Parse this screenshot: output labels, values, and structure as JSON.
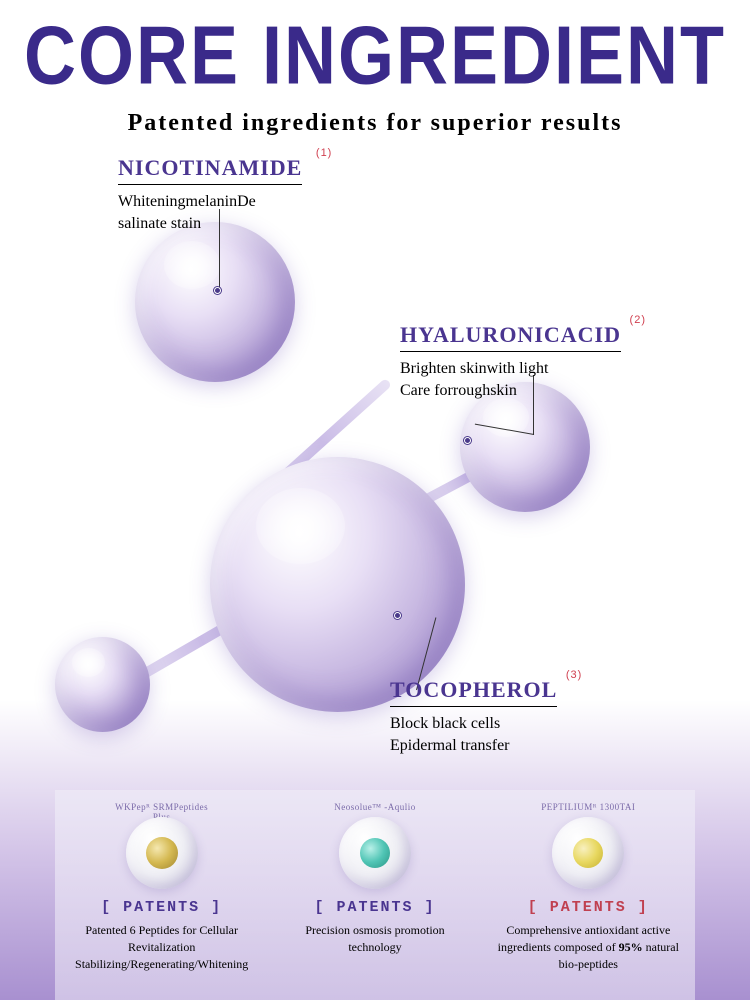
{
  "colors": {
    "title": "#3a2a8a",
    "accent": "#4a3590",
    "sup": "#d04050",
    "patent1_label": "#4a3590",
    "patent2_label": "#4a3590",
    "patent3_label": "#c04050"
  },
  "header": {
    "title": "CORE INGREDIENT",
    "subtitle": "Patented ingredients for superior results"
  },
  "ingredients": [
    {
      "name": "NICOTINAMIDE",
      "sup": "(1)",
      "desc_line1": "WhiteningmelaninDe",
      "desc_line2": "salinate stain"
    },
    {
      "name": "HYALURONICACID",
      "sup": "(2)",
      "desc_line1": "Brighten skinwith light",
      "desc_line2": "Care forroughskin"
    },
    {
      "name": "TOCOPHEROL",
      "sup": "(3)",
      "desc_line1": "Block black cells",
      "desc_line2": "Epidermal transfer"
    }
  ],
  "patents_label": "[ PATENTS ]",
  "patents": [
    {
      "arc": "WKPepᴿ SRMPeptides Plus",
      "desc": "Patented 6 Peptides for Cellular Revitalization Stabilizing/Regenerating/Whitening",
      "core_class": "core-gold"
    },
    {
      "arc": "Neosolue™ -Aqulio",
      "desc": "Precision osmosis promotion technology",
      "core_class": "core-teal"
    },
    {
      "arc": "PEPTILIUMᴿ 1300TAI",
      "desc_html": "Comprehensive antioxidant active ingredients composed of <b>95%</b> natural bio-peptides",
      "core_class": "core-yellow"
    }
  ]
}
